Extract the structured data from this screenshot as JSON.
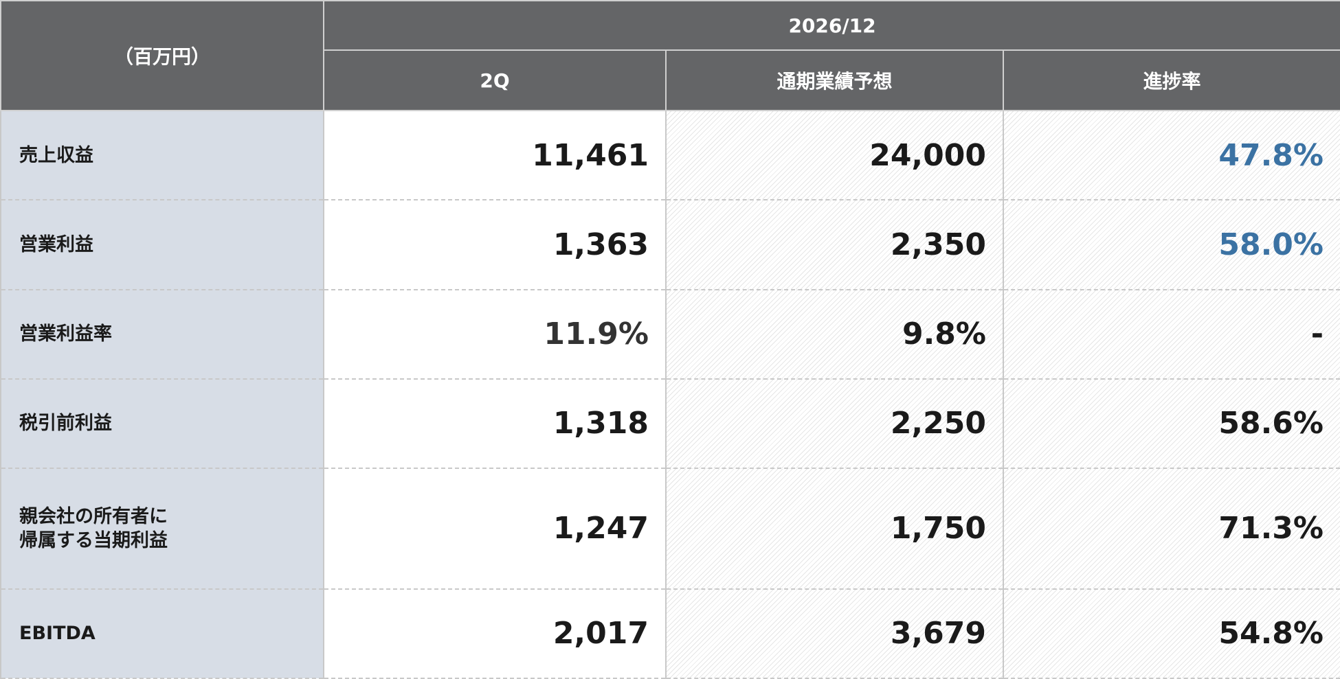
{
  "table": {
    "unit": "（百万円）",
    "period": "2026/12",
    "columns": [
      "2Q",
      "通期業績予想",
      "進捗率"
    ],
    "rows": [
      {
        "label": "売上収益",
        "cells": [
          "11,461",
          "24,000",
          "47.8%"
        ]
      },
      {
        "label": "営業利益",
        "cells": [
          "1,363",
          "2,350",
          "58.0%"
        ]
      },
      {
        "label": "営業利益率",
        "cells": [
          "11.9%",
          "9.8%",
          "-"
        ]
      },
      {
        "label": "税引前利益",
        "cells": [
          "1,318",
          "2,250",
          "58.6%"
        ]
      },
      {
        "label": "親会社の所有者に\n帰属する当期利益",
        "cells": [
          "1,247",
          "1,750",
          "71.3%"
        ]
      },
      {
        "label": "EBITDA",
        "cells": [
          "2,017",
          "3,679",
          "54.8%"
        ]
      }
    ]
  }
}
